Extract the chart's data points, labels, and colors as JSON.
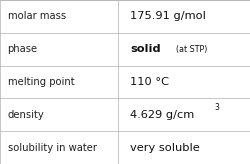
{
  "rows": [
    {
      "label": "molar mass",
      "value": "175.91 g/mol",
      "value_bold": false,
      "superscript": null,
      "annotation": null
    },
    {
      "label": "phase",
      "value": "solid",
      "value_bold": true,
      "superscript": null,
      "annotation": "(at STP)"
    },
    {
      "label": "melting point",
      "value": "110 °C",
      "value_bold": false,
      "superscript": null,
      "annotation": null
    },
    {
      "label": "density",
      "value": "4.629 g/cm",
      "value_bold": false,
      "superscript": "3",
      "annotation": null
    },
    {
      "label": "solubility in water",
      "value": "very soluble",
      "value_bold": false,
      "superscript": null,
      "annotation": null
    }
  ],
  "col_split": 0.472,
  "bg_color": "#ffffff",
  "line_color": "#b0b0b0",
  "label_color": "#222222",
  "value_color": "#111111",
  "label_fontsize": 7.2,
  "value_fontsize": 8.2,
  "annotation_fontsize": 5.8,
  "superscript_fontsize": 5.5
}
